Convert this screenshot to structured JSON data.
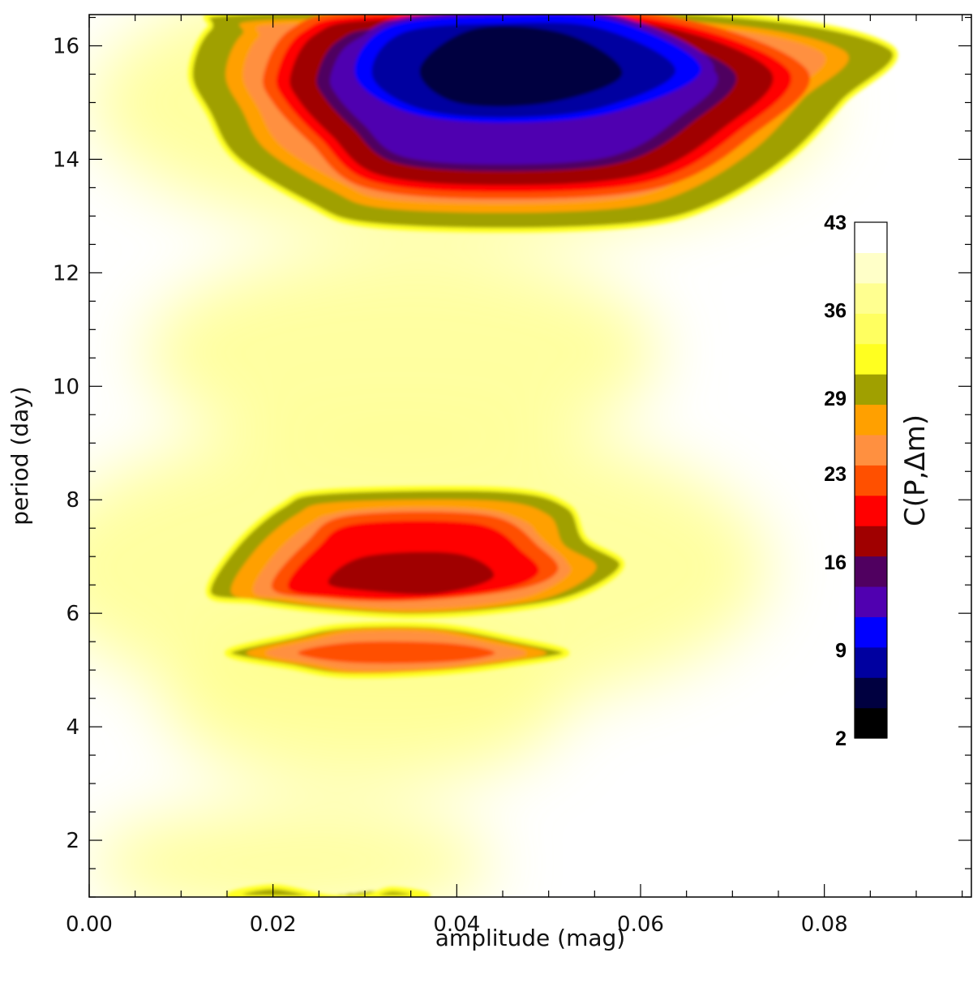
{
  "chart_data": {
    "type": "heatmap",
    "title": "",
    "xlabel": "amplitude (mag)",
    "ylabel": "period (day)",
    "xlim": [
      0.0,
      0.096
    ],
    "ylim": [
      1.0,
      16.55
    ],
    "x_ticks": [
      0.0,
      0.02,
      0.04,
      0.06,
      0.08
    ],
    "x_tick_labels": [
      "0.00",
      "0.02",
      "0.04",
      "0.06",
      "0.08"
    ],
    "y_ticks": [
      2,
      4,
      6,
      8,
      10,
      12,
      14,
      16
    ],
    "y_tick_labels": [
      "2",
      "4",
      "6",
      "8",
      "10",
      "12",
      "14",
      "16"
    ],
    "grid": false,
    "colorbar": {
      "label": "C(P,Δm)",
      "min": 2,
      "max": 43,
      "tick_values": [
        2,
        9,
        16,
        23,
        29,
        36,
        43
      ],
      "tick_labels": [
        "2",
        "9",
        "16",
        "23",
        "29",
        "36",
        "43"
      ],
      "colors": [
        "#000000",
        "#000040",
        "#0000a0",
        "#0000ff",
        "#5000b0",
        "#500060",
        "#a00000",
        "#ff0000",
        "#ff5000",
        "#ff9040",
        "#ffa000",
        "#a0a000",
        "#ffff20",
        "#ffff60",
        "#ffff90",
        "#ffffc8",
        "#ffffff"
      ]
    },
    "background_value": 42,
    "features": [
      {
        "name": "long-period-band",
        "center": {
          "amp": 0.044,
          "period": 15.4
        },
        "min_value": 5,
        "contours": [
          {
            "value": 30,
            "points": [
              [
                0.011,
                15.5
              ],
              [
                0.013,
                16.3
              ],
              [
                0.018,
                16.6
              ],
              [
                0.065,
                16.6
              ],
              [
                0.087,
                16.0
              ],
              [
                0.082,
                15.0
              ],
              [
                0.076,
                14.0
              ],
              [
                0.068,
                13.2
              ],
              [
                0.06,
                12.85
              ],
              [
                0.045,
                12.75
              ],
              [
                0.03,
                12.85
              ],
              [
                0.024,
                13.2
              ],
              [
                0.016,
                14.0
              ],
              [
                0.013,
                14.8
              ]
            ]
          },
          {
            "value": 22,
            "points": [
              [
                0.019,
                15.5
              ],
              [
                0.022,
                16.3
              ],
              [
                0.03,
                16.6
              ],
              [
                0.06,
                16.6
              ],
              [
                0.078,
                15.6
              ],
              [
                0.072,
                14.4
              ],
              [
                0.062,
                13.5
              ],
              [
                0.045,
                13.3
              ],
              [
                0.03,
                13.5
              ],
              [
                0.024,
                14.3
              ],
              [
                0.02,
                15.0
              ]
            ]
          },
          {
            "value": 12,
            "points": [
              [
                0.028,
                15.5
              ],
              [
                0.032,
                16.4
              ],
              [
                0.045,
                16.6
              ],
              [
                0.058,
                16.5
              ],
              [
                0.068,
                15.6
              ],
              [
                0.058,
                14.8
              ],
              [
                0.045,
                14.6
              ],
              [
                0.034,
                14.8
              ]
            ]
          },
          {
            "value": 6,
            "points": [
              [
                0.036,
                15.6
              ],
              [
                0.042,
                16.3
              ],
              [
                0.052,
                16.2
              ],
              [
                0.058,
                15.5
              ],
              [
                0.05,
                15.0
              ],
              [
                0.04,
                15.0
              ]
            ]
          }
        ]
      },
      {
        "name": "mid-period-band",
        "center": {
          "amp": 0.034,
          "period": 6.5
        },
        "min_value": 17,
        "contours": [
          {
            "value": 30,
            "points": [
              [
                0.013,
                6.35
              ],
              [
                0.016,
                7.2
              ],
              [
                0.021,
                7.9
              ],
              [
                0.026,
                8.15
              ],
              [
                0.045,
                8.18
              ],
              [
                0.052,
                7.9
              ],
              [
                0.054,
                7.3
              ],
              [
                0.058,
                6.85
              ],
              [
                0.053,
                6.3
              ],
              [
                0.045,
                6.05
              ],
              [
                0.035,
                5.95
              ],
              [
                0.025,
                6.05
              ],
              [
                0.018,
                6.2
              ]
            ]
          },
          {
            "value": 24,
            "points": [
              [
                0.019,
                6.45
              ],
              [
                0.023,
                7.3
              ],
              [
                0.028,
                7.8
              ],
              [
                0.044,
                7.8
              ],
              [
                0.05,
                7.2
              ],
              [
                0.052,
                6.75
              ],
              [
                0.047,
                6.4
              ],
              [
                0.035,
                6.2
              ],
              [
                0.025,
                6.25
              ]
            ]
          },
          {
            "value": 18,
            "points": [
              [
                0.026,
                6.55
              ],
              [
                0.03,
                7.0
              ],
              [
                0.04,
                7.05
              ],
              [
                0.044,
                6.65
              ],
              [
                0.038,
                6.35
              ],
              [
                0.03,
                6.4
              ]
            ]
          }
        ]
      },
      {
        "name": "five-day-band",
        "center": {
          "amp": 0.033,
          "period": 5.3
        },
        "min_value": 22,
        "contours": [
          {
            "value": 30,
            "points": [
              [
                0.015,
                5.3
              ],
              [
                0.022,
                5.6
              ],
              [
                0.028,
                5.78
              ],
              [
                0.038,
                5.78
              ],
              [
                0.046,
                5.55
              ],
              [
                0.052,
                5.3
              ],
              [
                0.046,
                5.1
              ],
              [
                0.038,
                4.95
              ],
              [
                0.028,
                4.9
              ],
              [
                0.022,
                5.05
              ]
            ]
          },
          {
            "value": 24,
            "points": [
              [
                0.021,
                5.3
              ],
              [
                0.028,
                5.52
              ],
              [
                0.04,
                5.5
              ],
              [
                0.046,
                5.3
              ],
              [
                0.04,
                5.12
              ],
              [
                0.028,
                5.1
              ]
            ]
          }
        ]
      },
      {
        "name": "short-period-edge",
        "center": {
          "amp": 0.025,
          "period": 1.0
        },
        "min_value": 30,
        "contours": [
          {
            "value": 31,
            "points": [
              [
                0.016,
                1.0
              ],
              [
                0.02,
                1.18
              ],
              [
                0.026,
                1.0
              ],
              [
                0.03,
                1.0
              ],
              [
                0.033,
                1.14
              ],
              [
                0.036,
                1.0
              ]
            ]
          }
        ]
      }
    ]
  }
}
